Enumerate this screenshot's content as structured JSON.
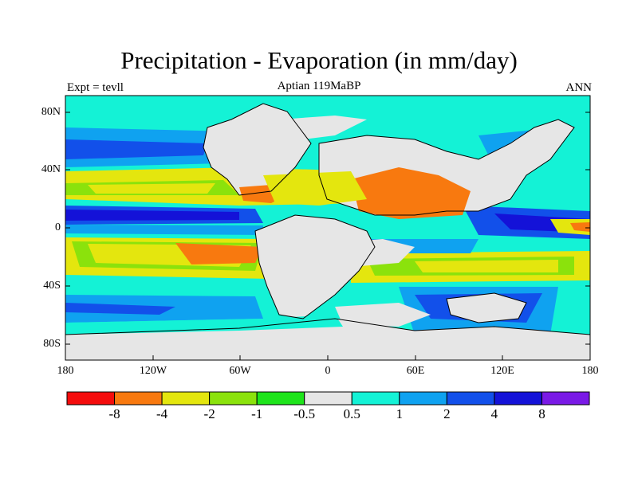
{
  "title": "Precipitation - Evaporation (in mm/day)",
  "subtitle": "Aptian   119MaBP",
  "left_label": "Expt = tevll",
  "right_label": "ANN",
  "lat_ticks": [
    "80N",
    "40N",
    "0",
    "40S",
    "80S"
  ],
  "lon_ticks": [
    "180",
    "120W",
    "60W",
    "0",
    "60E",
    "120E",
    "180"
  ],
  "colorbar": {
    "colors": [
      "#f40c0c",
      "#f8790f",
      "#e4e60e",
      "#8be20c",
      "#1ee41b",
      "#e6e6e6",
      "#14f2d6",
      "#0fa2f0",
      "#1250ea",
      "#1412d8",
      "#7a1ae6"
    ],
    "labels": [
      "-8",
      "-4",
      "-2",
      "-1",
      "-0.5",
      "0.5",
      "1",
      "2",
      "4",
      "8"
    ]
  },
  "map_colors": {
    "land": "#e6e6e6",
    "pe_0_5_1": "#14f2d6",
    "pe_1_2": "#0fa2f0",
    "pe_2_4": "#1250ea",
    "pe_4_8": "#1412d8",
    "pe_m05_m1": "#1ee41b",
    "pe_m1_m2": "#8be20c",
    "pe_m2_m4": "#e4e60e",
    "pe_m4_m8": "#f8790f"
  }
}
